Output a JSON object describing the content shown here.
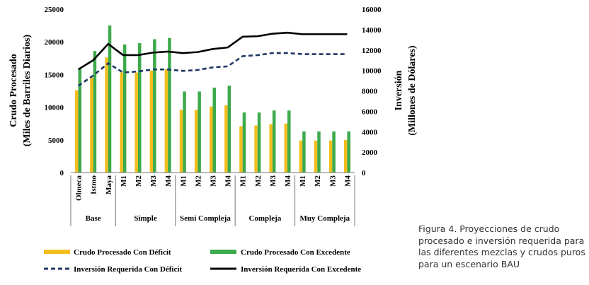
{
  "chart_data": {
    "type": "bar",
    "y_label_left_line1": "Crudo Procesado",
    "y_label_left_line2": "(Miles de Barriles Diarios)",
    "y_label_right_line1": "Inversión",
    "y_label_right_line2": "(Millones de Dólares)",
    "ylim_left": [
      0,
      25000
    ],
    "ylim_right": [
      0,
      16000
    ],
    "left_ticks": [
      0,
      5000,
      10000,
      15000,
      20000,
      25000
    ],
    "right_ticks": [
      0,
      2000,
      4000,
      6000,
      8000,
      10000,
      12000,
      14000,
      16000
    ],
    "left_tick_labels": [
      "0",
      "5000",
      "10000",
      "15000",
      "20000",
      "25000"
    ],
    "right_tick_labels": [
      "0",
      "2000",
      "4000",
      "6000",
      "8000",
      "10000",
      "12000",
      "14000",
      "16000"
    ],
    "categories": [
      "Olmeca",
      "Istmo",
      "Maya",
      "M1",
      "M2",
      "M3",
      "M4",
      "M1",
      "M2",
      "M3",
      "M4",
      "M1",
      "M2",
      "M3",
      "M4",
      "M1",
      "M2",
      "M3",
      "M4"
    ],
    "groups": [
      {
        "label": "Base",
        "count": 3
      },
      {
        "label": "Simple",
        "count": 4
      },
      {
        "label": "Semi Compleja",
        "count": 4
      },
      {
        "label": "Compleja",
        "count": 4
      },
      {
        "label": "Muy Compleja",
        "count": 4
      }
    ],
    "series": [
      {
        "name": "Crudo Procesado Con Déficit",
        "kind": "bar",
        "axis": "left",
        "color": "#F2BD1D",
        "values": [
          12600,
          14500,
          17600,
          15300,
          15300,
          15600,
          15800,
          9600,
          9600,
          10100,
          10300,
          7100,
          7200,
          7400,
          7500,
          4900,
          4900,
          4900,
          5000
        ]
      },
      {
        "name": "Crudo Procesado Con Excedente",
        "kind": "bar",
        "axis": "left",
        "color": "#3DAA4B",
        "values": [
          16000,
          18600,
          22500,
          19600,
          19800,
          20400,
          20600,
          12400,
          12400,
          13000,
          13300,
          9200,
          9200,
          9500,
          9500,
          6300,
          6300,
          6300,
          6300
        ]
      },
      {
        "name": "Inversión Requerida Con Déficit",
        "kind": "line",
        "axis": "right",
        "color": "#1F3864",
        "dashed": true,
        "values": [
          8500,
          9500,
          10700,
          9800,
          9900,
          10100,
          10100,
          9950,
          10050,
          10300,
          10400,
          11400,
          11500,
          11700,
          11700,
          11600,
          11600,
          11600,
          11600
        ]
      },
      {
        "name": "Inversión Requerida Con Excedente",
        "kind": "line",
        "axis": "right",
        "color": "#000000",
        "dashed": false,
        "values": [
          10100,
          11000,
          12600,
          11500,
          11500,
          11750,
          11850,
          11700,
          11800,
          12100,
          12250,
          13300,
          13350,
          13600,
          13700,
          13550,
          13550,
          13550,
          13550
        ]
      }
    ]
  },
  "caption": {
    "line1": "Figura 4. Proyecciones de crudo",
    "line2": "procesado e inversión requerida para",
    "line3": "las diferentes mezclas y crudos puros",
    "line4": "para un escenario BAU"
  }
}
